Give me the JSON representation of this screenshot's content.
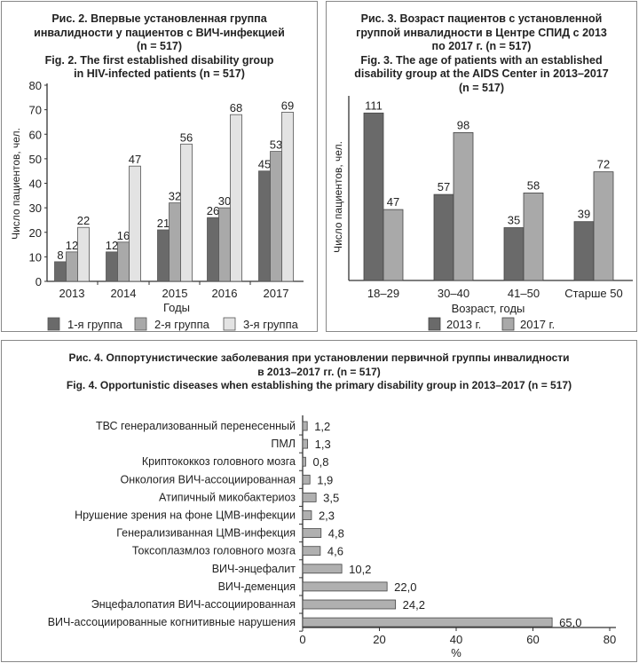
{
  "colors": {
    "dark": "#6a6a6a",
    "mid": "#a9a9a9",
    "light": "#e3e3e3",
    "bar": "#b0b0b0"
  },
  "chart_data": [
    {
      "type": "bar",
      "title_ru": [
        "Рис. 2. Впервые установленная группа",
        "инвалидности у пациентов с ВИЧ-инфекцией",
        "(n = 517)"
      ],
      "title_en": [
        "Fig. 2. The first established disability group",
        "in HIV-infected patients (n = 517)"
      ],
      "xlabel": "Годы",
      "ylabel": "Число пациентов, чел.",
      "ylim": [
        0,
        80
      ],
      "yticks": [
        0,
        10,
        20,
        30,
        40,
        50,
        60,
        70,
        80
      ],
      "categories": [
        "2013",
        "2014",
        "2015",
        "2016",
        "2017"
      ],
      "series": [
        {
          "name": "1-я группа",
          "values": [
            8,
            12,
            21,
            26,
            45
          ],
          "color": "#6a6a6a"
        },
        {
          "name": "2-я группа",
          "values": [
            12,
            16,
            32,
            30,
            53
          ],
          "color": "#a9a9a9"
        },
        {
          "name": "3-я группа",
          "values": [
            22,
            47,
            56,
            68,
            69
          ],
          "color": "#e3e3e3"
        }
      ],
      "legend": "bottom"
    },
    {
      "type": "bar",
      "title_ru": [
        "Рис. 3. Возраст пациентов с установленной",
        "группой инвалидности в Центре СПИД с 2013",
        "по 2017 г. (n = 517)"
      ],
      "title_en": [
        "Fig. 3. The age of patients with an established",
        "disability group at the AIDS Center in 2013–2017",
        "(n = 517)"
      ],
      "xlabel": "Возраст, годы",
      "ylabel": "Число пациентов, чел.",
      "categories": [
        "18–29",
        "30–40",
        "41–50",
        "Старше 50"
      ],
      "series": [
        {
          "name": "2013 г.",
          "values": [
            111,
            57,
            35,
            39
          ],
          "color": "#6a6a6a"
        },
        {
          "name": "2017 г.",
          "values": [
            47,
            98,
            58,
            72
          ],
          "color": "#a9a9a9"
        }
      ],
      "legend": "bottom"
    },
    {
      "type": "bar",
      "orientation": "horizontal",
      "title_ru": [
        "Рис. 4. Оппортунистические заболевания при установлении первичной группы инвалидности",
        "в 2013–2017 гг. (n = 517)"
      ],
      "title_en": [
        "Fig. 4. Opportunistic diseases when establishing the primary disability group in 2013–2017 (n = 517)"
      ],
      "xlabel": "%",
      "xlim": [
        0,
        80
      ],
      "xticks": [
        0,
        20,
        40,
        60,
        80
      ],
      "categories": [
        "ТВС генерализованный перенесенный",
        "ПМЛ",
        "Криптококкоз головного мозга",
        "Онкология ВИЧ-ассоциированная",
        "Атипичный микобактериоз",
        "Нрушение зрения на фоне ЦМВ-инфекции",
        "Генерализиванная ЦМВ-инфекция",
        "Токсоплазмлоз головного мозга",
        "ВИЧ-энцефалит",
        "ВИЧ-деменция",
        "Энцефалопатия ВИЧ-ассоциированная",
        "ВИЧ-ассоциированные когнитивные нарушения"
      ],
      "values": [
        1.2,
        1.3,
        0.8,
        1.9,
        3.5,
        2.3,
        4.8,
        4.6,
        10.2,
        22.0,
        24.2,
        65.0
      ],
      "value_labels": [
        "1,2",
        "1,3",
        "0,8",
        "1,9",
        "3,5",
        "2,3",
        "4,8",
        "4,6",
        "10,2",
        "22,0",
        "24,2",
        "65,0"
      ]
    }
  ]
}
